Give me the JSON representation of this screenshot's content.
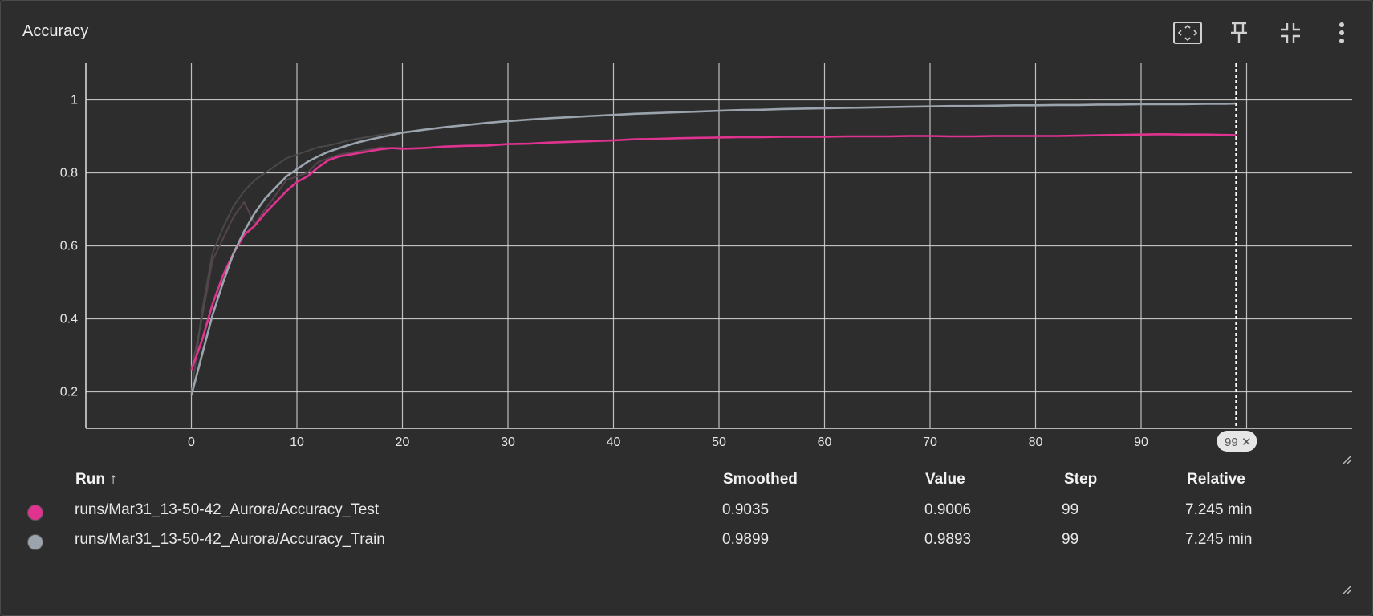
{
  "card": {
    "title": "Accuracy"
  },
  "toolbar": {
    "icons": [
      "fit-domain-icon",
      "pin-icon",
      "collapse-icon",
      "more-vert-icon"
    ]
  },
  "colors": {
    "background": "#2d2d2d",
    "grid": "#d9d9d9",
    "test": "#e0338f",
    "train": "#9ba3ad",
    "cursor": "#ffffff"
  },
  "chart_data": {
    "type": "line",
    "title": "Accuracy",
    "xlabel": "",
    "ylabel": "",
    "xlim": [
      -10,
      110
    ],
    "ylim": [
      0.1,
      1.1
    ],
    "xticks": [
      0,
      10,
      20,
      30,
      40,
      50,
      60,
      70,
      80,
      90
    ],
    "yticks": [
      0.2,
      0.4,
      0.6,
      0.8,
      1
    ],
    "grid": true,
    "hover_step": 99,
    "hover_label": "99",
    "series": [
      {
        "name": "runs/Mar31_13-50-42_Aurora/Accuracy_Test",
        "color": "#e0338f",
        "x": [
          0,
          1,
          2,
          3,
          4,
          5,
          6,
          7,
          8,
          9,
          10,
          11,
          12,
          13,
          14,
          15,
          16,
          17,
          18,
          19,
          20,
          22,
          24,
          26,
          28,
          30,
          32,
          34,
          36,
          38,
          40,
          42,
          44,
          46,
          48,
          50,
          52,
          54,
          56,
          58,
          60,
          62,
          64,
          66,
          68,
          70,
          72,
          74,
          76,
          78,
          80,
          82,
          84,
          86,
          88,
          90,
          92,
          94,
          96,
          98,
          99
        ],
        "y": [
          0.26,
          0.34,
          0.44,
          0.52,
          0.58,
          0.63,
          0.655,
          0.69,
          0.72,
          0.75,
          0.775,
          0.79,
          0.815,
          0.835,
          0.845,
          0.85,
          0.855,
          0.86,
          0.865,
          0.868,
          0.866,
          0.868,
          0.872,
          0.874,
          0.875,
          0.879,
          0.88,
          0.883,
          0.885,
          0.887,
          0.889,
          0.892,
          0.893,
          0.895,
          0.896,
          0.897,
          0.898,
          0.898,
          0.899,
          0.899,
          0.899,
          0.9,
          0.9,
          0.9,
          0.901,
          0.901,
          0.9,
          0.9,
          0.901,
          0.901,
          0.901,
          0.901,
          0.902,
          0.903,
          0.904,
          0.905,
          0.906,
          0.905,
          0.905,
          0.904,
          0.9035
        ]
      },
      {
        "name": "runs/Mar31_13-50-42_Aurora/Accuracy_Train",
        "color": "#9ba3ad",
        "x": [
          0,
          1,
          2,
          3,
          4,
          5,
          6,
          7,
          8,
          9,
          10,
          11,
          12,
          13,
          14,
          15,
          16,
          17,
          18,
          19,
          20,
          22,
          24,
          26,
          28,
          30,
          32,
          34,
          36,
          38,
          40,
          42,
          44,
          46,
          48,
          50,
          52,
          54,
          56,
          58,
          60,
          62,
          64,
          66,
          68,
          70,
          72,
          74,
          76,
          78,
          80,
          82,
          84,
          86,
          88,
          90,
          92,
          94,
          96,
          98,
          99
        ],
        "y": [
          0.19,
          0.3,
          0.41,
          0.5,
          0.58,
          0.64,
          0.69,
          0.73,
          0.76,
          0.79,
          0.81,
          0.83,
          0.845,
          0.858,
          0.868,
          0.877,
          0.885,
          0.892,
          0.898,
          0.904,
          0.91,
          0.918,
          0.925,
          0.931,
          0.937,
          0.942,
          0.946,
          0.95,
          0.953,
          0.956,
          0.959,
          0.962,
          0.964,
          0.966,
          0.968,
          0.97,
          0.972,
          0.973,
          0.975,
          0.976,
          0.977,
          0.978,
          0.979,
          0.98,
          0.981,
          0.982,
          0.983,
          0.983,
          0.984,
          0.985,
          0.985,
          0.986,
          0.986,
          0.987,
          0.987,
          0.988,
          0.988,
          0.988,
          0.989,
          0.989,
          0.9899
        ]
      },
      {
        "name": "runs/Mar31_13-50-42_Aurora/Accuracy_Test (raw)",
        "color": "#5c4452",
        "x": [
          0,
          1,
          2,
          3,
          4,
          5,
          6,
          7,
          8,
          9,
          10,
          11,
          12,
          13,
          14,
          15,
          16,
          17,
          18,
          19,
          20
        ],
        "y": [
          0.26,
          0.4,
          0.56,
          0.62,
          0.68,
          0.72,
          0.66,
          0.7,
          0.74,
          0.78,
          0.79,
          0.8,
          0.83,
          0.84,
          0.85,
          0.855,
          0.86,
          0.865,
          0.87,
          0.868,
          0.87
        ]
      },
      {
        "name": "runs/Mar31_13-50-42_Aurora/Accuracy_Train (raw)",
        "color": "#4c4c4c",
        "x": [
          0,
          1,
          2,
          3,
          4,
          5,
          6,
          7,
          8,
          9,
          10,
          11,
          12,
          13,
          14,
          15,
          16,
          17,
          18,
          19,
          20
        ],
        "y": [
          0.19,
          0.42,
          0.58,
          0.65,
          0.71,
          0.75,
          0.78,
          0.8,
          0.82,
          0.84,
          0.85,
          0.86,
          0.87,
          0.875,
          0.882,
          0.89,
          0.895,
          0.9,
          0.905,
          0.908,
          0.912
        ]
      }
    ]
  },
  "table": {
    "headers": {
      "run": "Run ↑",
      "smoothed": "Smoothed",
      "value": "Value",
      "step": "Step",
      "relative": "Relative"
    },
    "rows": [
      {
        "run": "runs/Mar31_13-50-42_Aurora/Accuracy_Test",
        "smoothed": "0.9035",
        "value": "0.9006",
        "step": "99",
        "relative": "7.245 min",
        "color": "#e0338f"
      },
      {
        "run": "runs/Mar31_13-50-42_Aurora/Accuracy_Train",
        "smoothed": "0.9899",
        "value": "0.9893",
        "step": "99",
        "relative": "7.245 min",
        "color": "#9ba3ad"
      }
    ]
  }
}
